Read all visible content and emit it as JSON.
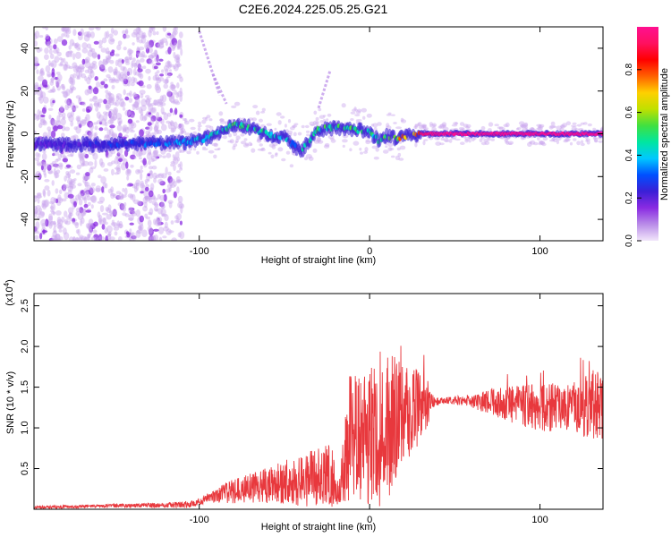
{
  "title": "C2E6.2024.225.05.25.G21",
  "chart_data": [
    {
      "type": "heatmap",
      "xlabel": "Height of straight line (km)",
      "ylabel": "Frequency (Hz)",
      "xlim": [
        -197,
        137
      ],
      "ylim": [
        -50,
        50
      ],
      "xticks": [
        -100,
        0,
        100
      ],
      "yticks": [
        -40,
        -20,
        0,
        20,
        40
      ],
      "colorbar": {
        "label": "Normalized spectral amplitude",
        "range": [
          0,
          1
        ],
        "ticks": [
          0.0,
          0.2,
          0.4,
          0.6,
          0.8
        ],
        "colormap": [
          "#f2e6fa",
          "#b98ce8",
          "#8a2be2",
          "#3b1fd6",
          "#0050ff",
          "#00c8ff",
          "#00e6a0",
          "#40e040",
          "#c0e000",
          "#ffd000",
          "#ff6000",
          "#ff0000",
          "#ff1060",
          "#ff1090"
        ]
      },
      "ridge": {
        "x": [
          -197,
          -150,
          -110,
          -95,
          -80,
          -70,
          -60,
          -50,
          -45,
          -40,
          -35,
          -30,
          -20,
          -10,
          0,
          5,
          10,
          15,
          20,
          30,
          40,
          60,
          80,
          100,
          120,
          137
        ],
        "y": [
          -5,
          -5,
          -4,
          -2,
          4,
          3,
          0,
          -2,
          -5,
          -8,
          -3,
          2,
          3,
          2,
          1,
          -3,
          -1,
          -2,
          -1,
          0,
          0,
          0,
          0,
          0,
          0,
          0
        ],
        "peak_amplitude": [
          0.2,
          0.3,
          0.4,
          0.5,
          0.6,
          0.55,
          0.5,
          0.45,
          0.4,
          0.5,
          0.6,
          0.55,
          0.6,
          0.6,
          0.55,
          0.5,
          0.6,
          0.7,
          0.85,
          0.95,
          1.0,
          1.0,
          1.0,
          1.0,
          1.0,
          1.0
        ]
      },
      "streaks": [
        {
          "x": [
            -100,
            -88
          ],
          "y": [
            48,
            18
          ]
        },
        {
          "x": [
            -92,
            -84
          ],
          "y": [
            28,
            14
          ]
        },
        {
          "x": [
            -30,
            -23
          ],
          "y": [
            12,
            30
          ]
        }
      ]
    },
    {
      "type": "line",
      "xlabel": "Height of straight line (km)",
      "ylabel": "SNR (10 * v/v)",
      "y_multiplier": "(x10⁴)",
      "xlim": [
        -197,
        137
      ],
      "ylim": [
        0,
        2.65
      ],
      "xticks": [
        -100,
        0,
        100
      ],
      "yticks": [
        0.5,
        1.0,
        1.5,
        2.0,
        2.5
      ],
      "color": "#e8383d",
      "envelope": {
        "x": [
          -197,
          -160,
          -120,
          -105,
          -95,
          -80,
          -65,
          -50,
          -35,
          -22,
          -18,
          -12,
          -5,
          0,
          5,
          10,
          15,
          20,
          25,
          32,
          38,
          45,
          60,
          80,
          100,
          115,
          125,
          132,
          137
        ],
        "mid": [
          0.02,
          0.04,
          0.05,
          0.06,
          0.14,
          0.22,
          0.28,
          0.32,
          0.38,
          0.42,
          0.15,
          0.9,
          0.85,
          0.9,
          0.88,
          0.95,
          1.1,
          1.18,
          1.2,
          1.3,
          1.32,
          1.34,
          1.33,
          1.3,
          1.25,
          1.26,
          1.25,
          1.3,
          1.2
        ],
        "amp": [
          0.02,
          0.02,
          0.03,
          0.04,
          0.06,
          0.15,
          0.2,
          0.28,
          0.35,
          0.4,
          0.1,
          0.9,
          0.75,
          0.85,
          0.9,
          0.9,
          0.85,
          0.55,
          0.55,
          0.4,
          0.05,
          0.04,
          0.08,
          0.22,
          0.3,
          0.3,
          0.35,
          0.45,
          0.4
        ]
      }
    }
  ]
}
